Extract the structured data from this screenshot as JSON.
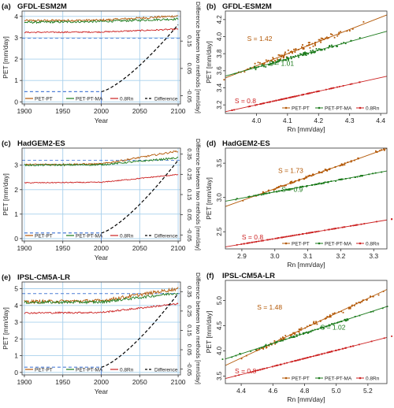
{
  "figure": {
    "rows": [
      {
        "model": "GFDL-ESM2M",
        "ts_tag": "(a)",
        "sc_tag": "(b)"
      },
      {
        "model": "HadGEM2-ES",
        "ts_tag": "(c)",
        "sc_tag": "(d)"
      },
      {
        "model": "IPSL-CM5A-LR",
        "ts_tag": "(e)",
        "sc_tag": "(f)"
      }
    ],
    "colors": {
      "pt": "#b35806",
      "ptma": "#1b7a1b",
      "rn": "#cc2222",
      "diff": "#000000",
      "grid": "#a8d0ec",
      "hline": "#4f7fd6"
    }
  },
  "chart_data": [
    {
      "type": "line",
      "title": "GFDL-ESM2M",
      "xlabel": "Year",
      "ylabel": "PET [mm/day]",
      "y2label": "Difference between two methods [mm/day]",
      "xlim": [
        1897,
        2103
      ],
      "ylim": [
        -0.1,
        4.25
      ],
      "y2lim": [
        -0.08,
        0.26
      ],
      "xticks": [
        "1900",
        "1950",
        "2000",
        "2050",
        "2100"
      ],
      "yticks": [
        "0",
        "1",
        "2",
        "3",
        "4"
      ],
      "y2ticks": [
        "-0.05",
        "0.05",
        "0.15"
      ],
      "y2tick_values": [
        -0.05,
        0.05,
        0.15
      ],
      "legend": [
        "PET-PT",
        "PET-PT-MA",
        "0.8Rn",
        "Difference"
      ],
      "legend_position": "bottom",
      "grid": true,
      "series": [
        {
          "name": "PET-PT",
          "start": [
            1900,
            3.8
          ],
          "mid": [
            2000,
            3.82
          ],
          "end": [
            2100,
            4.02
          ],
          "noise": 0.05
        },
        {
          "name": "PET-PT-MA",
          "start": [
            1900,
            3.72
          ],
          "mid": [
            2000,
            3.76
          ],
          "end": [
            2100,
            3.88
          ],
          "noise": 0.05
        },
        {
          "name": "0.8Rn",
          "start": [
            1900,
            3.25
          ],
          "mid": [
            2000,
            3.27
          ],
          "end": [
            2100,
            3.4
          ],
          "noise": 0.03
        },
        {
          "name": "Difference",
          "axis": "right",
          "flat": [
            [
              1900,
              -0.035
            ],
            [
              2000,
              -0.035
            ]
          ],
          "rise": [
            [
              2000,
              -0.035
            ],
            [
              2100,
              0.21
            ]
          ]
        }
      ],
      "ref_line": {
        "axis": "right",
        "y": 0.16
      }
    },
    {
      "type": "scatter",
      "title": "GFDL-ESM2M",
      "xlabel": "Rn [mm/day]",
      "ylabel": "PET [mm/day]",
      "xlim": [
        3.9,
        4.42
      ],
      "ylim": [
        3.1,
        4.3
      ],
      "xticks": [
        4.0,
        4.1,
        4.2,
        4.3,
        4.4
      ],
      "yticks": [
        3.2,
        3.4,
        3.6,
        3.8,
        4.0,
        4.2
      ],
      "legend": [
        "PET-PT",
        "PET-PT-MA",
        "0.8Rn"
      ],
      "legend_position": "bottom-right",
      "series": [
        {
          "name": "PET-PT",
          "slope": 1.42,
          "anchor": [
            4.1,
            3.8
          ],
          "xr": [
            3.95,
            4.32
          ],
          "scatter": 0.045,
          "label": "S = 1.42",
          "label_at": [
            3.97,
            3.95
          ]
        },
        {
          "name": "PET-PT-MA",
          "slope": 1.01,
          "anchor": [
            4.1,
            3.74
          ],
          "xr": [
            3.95,
            4.32
          ],
          "scatter": 0.025,
          "label": "S = 1.01",
          "label_at": [
            4.04,
            3.66
          ]
        },
        {
          "name": "0.8Rn",
          "slope": 0.8,
          "anchor": [
            4.1,
            3.28
          ],
          "xr": [
            3.92,
            4.32
          ],
          "scatter": 0.0,
          "label": "S = 0.8",
          "label_at": [
            3.93,
            3.22
          ]
        }
      ]
    },
    {
      "type": "line",
      "title": "HadGEM2-ES",
      "xlabel": "Year",
      "ylabel": "PET [mm/day]",
      "y2label": "Difference between two methods [mm/day]",
      "xlim": [
        1897,
        2103
      ],
      "ylim": [
        -0.1,
        3.7
      ],
      "y2lim": [
        -0.08,
        0.38
      ],
      "xticks": [
        "1900",
        "1950",
        "2000",
        "2050",
        "2100"
      ],
      "yticks": [
        "0",
        "1",
        "2",
        "3"
      ],
      "y2ticks": [
        "-0.05",
        "0.05",
        "0.15",
        "0.25",
        "0.35"
      ],
      "y2tick_values": [
        -0.05,
        0.05,
        0.15,
        0.25,
        0.35
      ],
      "legend": [
        "PET-PT",
        "PET-PT-MA",
        "0.8Rn",
        "Difference"
      ],
      "legend_position": "bottom",
      "grid": true,
      "series": [
        {
          "name": "PET-PT",
          "start": [
            1900,
            3.02
          ],
          "mid": [
            2000,
            3.05
          ],
          "end": [
            2100,
            3.58
          ],
          "noise": 0.035
        },
        {
          "name": "PET-PT-MA",
          "start": [
            1900,
            3.0
          ],
          "mid": [
            2000,
            3.02
          ],
          "end": [
            2100,
            3.3
          ],
          "noise": 0.035
        },
        {
          "name": "0.8Rn",
          "start": [
            1900,
            2.28
          ],
          "mid": [
            2000,
            2.3
          ],
          "end": [
            2100,
            2.62
          ],
          "noise": 0.02
        },
        {
          "name": "Difference",
          "axis": "right",
          "flat": [
            [
              1900,
              -0.04
            ],
            [
              2000,
              -0.04
            ]
          ],
          "rise": [
            [
              2000,
              -0.04
            ],
            [
              2100,
              0.32
            ]
          ]
        }
      ],
      "ref_line": {
        "axis": "right",
        "y": 0.32
      }
    },
    {
      "type": "scatter",
      "title": "HadGEM2-ES",
      "xlabel": "Rn [mm/day]",
      "ylabel": "PET [mm/day]",
      "xlim": [
        2.85,
        3.34
      ],
      "ylim": [
        2.25,
        3.72
      ],
      "xticks": [
        2.9,
        3.0,
        3.1,
        3.2,
        3.3
      ],
      "yticks": [
        2.5,
        3.0,
        3.5
      ],
      "legend": [
        "PET-PT",
        "PET-PT-MA",
        "0.8Rn"
      ],
      "legend_position": "bottom-right",
      "series": [
        {
          "name": "PET-PT",
          "slope": 1.73,
          "anchor": [
            3.1,
            3.3
          ],
          "xr": [
            2.88,
            3.33
          ],
          "scatter": 0.02,
          "label": "S = 1.73",
          "label_at": [
            3.01,
            3.36
          ]
        },
        {
          "name": "PET-PT-MA",
          "slope": 0.9,
          "anchor": [
            3.1,
            3.17
          ],
          "xr": [
            2.88,
            3.33
          ],
          "scatter": 0.008,
          "label": "S = 0.9",
          "label_at": [
            3.02,
            3.08
          ]
        },
        {
          "name": "0.8Rn",
          "slope": 0.8,
          "anchor": [
            3.1,
            2.48
          ],
          "xr": [
            2.86,
            3.33
          ],
          "scatter": 0.0,
          "label": "S = 0.8",
          "label_at": [
            2.9,
            2.39
          ]
        }
      ]
    },
    {
      "type": "line",
      "title": "IPSL-CM5A-LR",
      "xlabel": "Year",
      "ylabel": "PET [mm/day]",
      "y2label": "Difference between two methods [mm/day]",
      "xlim": [
        1897,
        2103
      ],
      "ylim": [
        -0.15,
        5.4
      ],
      "y2lim": [
        -0.08,
        0.4
      ],
      "xticks": [
        "1900",
        "1950",
        "2000",
        "2050",
        "2100"
      ],
      "yticks": [
        "0",
        "1",
        "2",
        "3",
        "4",
        "5"
      ],
      "y2ticks": [
        "-0.05",
        "0.05",
        "0.15",
        "0.25",
        "0.35"
      ],
      "y2tick_values": [
        -0.05,
        0.05,
        0.15,
        0.25,
        0.35
      ],
      "legend": [
        "PET-PT",
        "PET-PT-MA",
        "0.8Rn",
        "Difference"
      ],
      "legend_position": "bottom",
      "grid": true,
      "series": [
        {
          "name": "PET-PT",
          "start": [
            1900,
            4.22
          ],
          "mid": [
            2000,
            4.28
          ],
          "end": [
            2100,
            5.0
          ],
          "noise": 0.1
        },
        {
          "name": "PET-PT-MA",
          "start": [
            1900,
            4.18
          ],
          "mid": [
            2000,
            4.2
          ],
          "end": [
            2100,
            4.75
          ],
          "noise": 0.08
        },
        {
          "name": "0.8Rn",
          "start": [
            1900,
            3.55
          ],
          "mid": [
            2000,
            3.58
          ],
          "end": [
            2100,
            4.1
          ],
          "noise": 0.05
        },
        {
          "name": "Difference",
          "axis": "right",
          "flat": [
            [
              1900,
              -0.04
            ],
            [
              2000,
              -0.04
            ]
          ],
          "rise": [
            [
              2000,
              -0.04
            ],
            [
              2100,
              0.34
            ]
          ]
        }
      ],
      "ref_line": {
        "axis": "right",
        "y": 0.34
      }
    },
    {
      "type": "scatter",
      "title": "IPSL-CM5A-LR",
      "xlabel": "Rn [mm/day]",
      "ylabel": "PET [mm/day]",
      "xlim": [
        4.3,
        5.32
      ],
      "ylim": [
        3.35,
        5.4
      ],
      "xticks": [
        4.4,
        4.6,
        4.8,
        5.0,
        5.2
      ],
      "yticks": [
        3.5,
        4.0,
        4.5,
        5.0
      ],
      "legend": [
        "PET-PT",
        "PET-PT-MA",
        "0.8Rn"
      ],
      "legend_position": "bottom-right",
      "series": [
        {
          "name": "PET-PT",
          "slope": 1.48,
          "anchor": [
            4.8,
            4.45
          ],
          "xr": [
            4.35,
            5.28
          ],
          "scatter": 0.05,
          "label": "S = 1.48",
          "label_at": [
            4.5,
            4.82
          ]
        },
        {
          "name": "PET-PT-MA",
          "slope": 1.02,
          "anchor": [
            4.8,
            4.35
          ],
          "xr": [
            4.35,
            5.28
          ],
          "scatter": 0.025,
          "label": "S = 1.02",
          "label_at": [
            4.9,
            4.42
          ]
        },
        {
          "name": "0.8Rn",
          "slope": 0.8,
          "anchor": [
            4.8,
            3.85
          ],
          "xr": [
            4.32,
            5.3
          ],
          "scatter": 0.0,
          "label": "S = 0.8",
          "label_at": [
            4.36,
            3.55
          ]
        }
      ]
    }
  ]
}
